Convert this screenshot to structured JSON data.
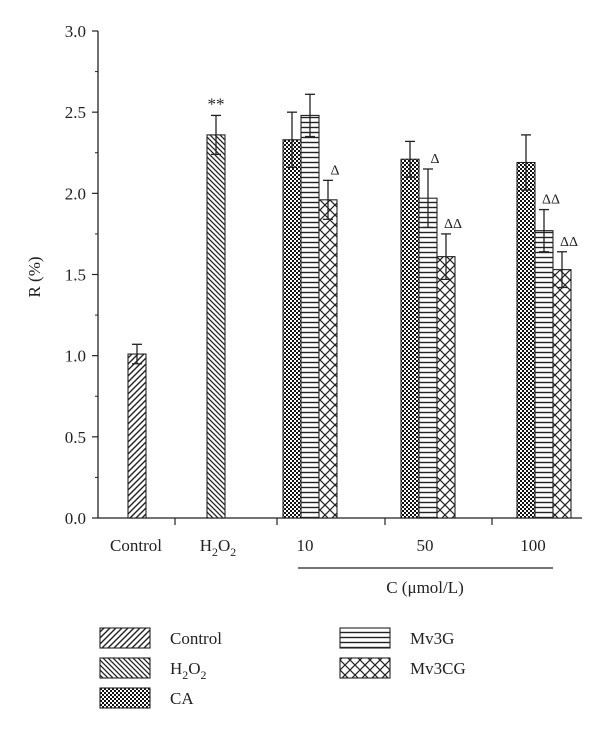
{
  "chart_data": {
    "type": "bar",
    "ylabel": "R (%)",
    "xlabel": "C (μmol/L)",
    "ylim": [
      0,
      3.0
    ],
    "yticks": [
      "0.0",
      "0.5",
      "1.0",
      "1.5",
      "2.0",
      "2.5",
      "3.0"
    ],
    "categories": [
      "Control",
      "H2O2",
      "10",
      "50",
      "100"
    ],
    "bracket_categories": [
      "10",
      "50",
      "100"
    ],
    "series": [
      {
        "name": "Control",
        "pattern": "diag-fwd",
        "values": [
          1.01,
          null,
          null,
          null,
          null
        ],
        "errors": [
          0.06,
          null,
          null,
          null,
          null
        ],
        "marks": [
          "",
          "",
          "",
          "",
          ""
        ]
      },
      {
        "name": "H2O2",
        "pattern": "diag-back",
        "values": [
          null,
          2.36,
          null,
          null,
          null
        ],
        "errors": [
          null,
          0.12,
          null,
          null,
          null
        ],
        "marks": [
          "",
          "**",
          "",
          "",
          ""
        ]
      },
      {
        "name": "CA",
        "pattern": "checker",
        "values": [
          null,
          null,
          2.33,
          2.21,
          2.19
        ],
        "errors": [
          null,
          null,
          0.17,
          0.11,
          0.17
        ],
        "marks": [
          "",
          "",
          "",
          "",
          ""
        ]
      },
      {
        "name": "Mv3G",
        "pattern": "horizontal",
        "values": [
          null,
          null,
          2.48,
          1.97,
          1.77
        ],
        "errors": [
          null,
          null,
          0.13,
          0.18,
          0.13
        ],
        "marks": [
          "",
          "",
          "",
          "Δ",
          "ΔΔ"
        ]
      },
      {
        "name": "Mv3CG",
        "pattern": "cross",
        "values": [
          null,
          null,
          1.96,
          1.61,
          1.53
        ],
        "errors": [
          null,
          null,
          0.12,
          0.14,
          0.11
        ],
        "marks": [
          "",
          "",
          "Δ",
          "ΔΔ",
          "ΔΔ"
        ]
      }
    ],
    "legend": {
      "placement": "bottom",
      "entries": [
        {
          "label": "Control",
          "pattern": "diag-fwd"
        },
        {
          "label": "Mv3G",
          "pattern": "horizontal"
        },
        {
          "label": "H2O2",
          "pattern": "diag-back"
        },
        {
          "label": "Mv3CG",
          "pattern": "cross"
        },
        {
          "label": "CA",
          "pattern": "checker"
        }
      ]
    }
  }
}
